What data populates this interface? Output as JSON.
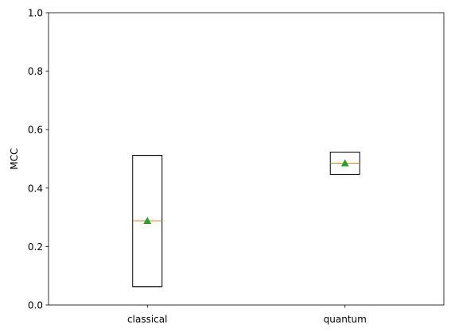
{
  "chart_data": {
    "type": "box",
    "title": "",
    "xlabel": "",
    "ylabel": "MCC",
    "ylim": [
      0.0,
      1.0
    ],
    "yticks": [
      0.0,
      0.2,
      0.4,
      0.6,
      0.8,
      1.0
    ],
    "ytick_labels": [
      "0.0",
      "0.2",
      "0.4",
      "0.6",
      "0.8",
      "1.0"
    ],
    "categories": [
      "classical",
      "quantum"
    ],
    "boxes": [
      {
        "category": "classical",
        "whisker_low": 0.063,
        "q1": 0.063,
        "median": 0.288,
        "q3": 0.512,
        "whisker_high": 0.512,
        "mean": 0.288
      },
      {
        "category": "quantum",
        "whisker_low": 0.447,
        "q1": 0.447,
        "median": 0.485,
        "q3": 0.523,
        "whisker_high": 0.523,
        "mean": 0.485
      }
    ],
    "grid": false,
    "colors": {
      "box": "#000000",
      "median": "#ff7f0e",
      "mean": "#2ca02c"
    }
  }
}
